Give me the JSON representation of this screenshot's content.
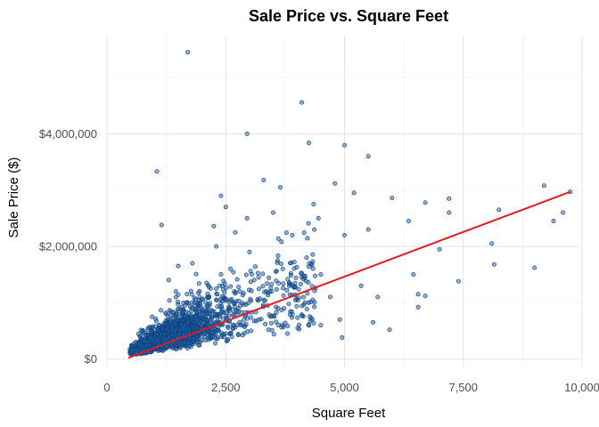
{
  "chart_data": {
    "type": "scatter",
    "title": "Sale Price vs. Square Feet",
    "xlabel": "Square Feet",
    "ylabel": "Sale Price ($)",
    "xlim": [
      0,
      10000
    ],
    "ylim": [
      0,
      5500000
    ],
    "x_ticks": [
      0,
      2500,
      5000,
      7500,
      10000
    ],
    "x_tick_labels": [
      "0",
      "2,500",
      "5,000",
      "7,500",
      "10,000"
    ],
    "y_ticks": [
      0,
      2000000,
      4000000
    ],
    "y_tick_labels": [
      "$0",
      "$2,000,000",
      "$4,000,000"
    ],
    "grid": true,
    "point_color": "#1f5fa8",
    "point_edge_color": "#0b3f7a",
    "trend_color": "#e41a1c",
    "trend_line": {
      "x": [
        450,
        9750
      ],
      "y": [
        20000,
        2970000
      ]
    },
    "series": [
      {
        "values": [
          [
            1700,
            5450000
          ],
          [
            4100,
            4560000
          ],
          [
            2950,
            4000000
          ],
          [
            4250,
            3840000
          ],
          [
            5000,
            3800000
          ],
          [
            1050,
            3330000
          ],
          [
            5500,
            3600000
          ],
          [
            2400,
            2900000
          ],
          [
            3300,
            3180000
          ],
          [
            4800,
            3120000
          ],
          [
            3650,
            3050000
          ],
          [
            5200,
            2950000
          ],
          [
            6000,
            2860000
          ],
          [
            6700,
            2780000
          ],
          [
            7200,
            2850000
          ],
          [
            9200,
            3080000
          ],
          [
            9750,
            2970000
          ],
          [
            2500,
            2700000
          ],
          [
            2950,
            2500000
          ],
          [
            3500,
            2600000
          ],
          [
            4350,
            2750000
          ],
          [
            4450,
            2500000
          ],
          [
            5500,
            2300000
          ],
          [
            6350,
            2450000
          ],
          [
            7200,
            2600000
          ],
          [
            8250,
            2650000
          ],
          [
            9600,
            2600000
          ],
          [
            9400,
            2450000
          ],
          [
            1150,
            2380000
          ],
          [
            2250,
            2360000
          ],
          [
            3900,
            2200000
          ],
          [
            5000,
            2200000
          ],
          [
            7000,
            1950000
          ],
          [
            8100,
            2050000
          ],
          [
            8150,
            1680000
          ],
          [
            9000,
            1620000
          ],
          [
            7400,
            1380000
          ],
          [
            6700,
            1120000
          ],
          [
            6550,
            920000
          ],
          [
            6550,
            1150000
          ],
          [
            6450,
            1500000
          ],
          [
            5950,
            520000
          ],
          [
            5600,
            650000
          ],
          [
            4950,
            380000
          ],
          [
            4500,
            600000
          ],
          [
            4900,
            700000
          ],
          [
            5350,
            1300000
          ],
          [
            5700,
            1100000
          ],
          [
            4250,
            1000000
          ],
          [
            3600,
            900000
          ],
          [
            3200,
            700000
          ],
          [
            3400,
            520000
          ],
          [
            3800,
            450000
          ],
          [
            4200,
            1800000
          ],
          [
            4500,
            1500000
          ],
          [
            3000,
            1900000
          ],
          [
            2700,
            2250000
          ],
          [
            2300,
            2000000
          ],
          [
            1800,
            1700000
          ],
          [
            1500,
            1650000
          ],
          [
            1300,
            1400000
          ],
          [
            2600,
            1600000
          ],
          [
            3100,
            1400000
          ],
          [
            3700,
            1600000
          ],
          [
            4100,
            1450000
          ],
          [
            4700,
            1100000
          ],
          [
            2800,
            1200000
          ],
          [
            2100,
            1350000
          ],
          [
            1950,
            1100000
          ],
          [
            1650,
            950000
          ],
          [
            1250,
            800000
          ],
          [
            950,
            750000
          ],
          [
            750,
            500000
          ],
          [
            1450,
            1200000
          ],
          [
            2300,
            1050000
          ],
          [
            3350,
            1200000
          ]
        ]
      }
    ]
  }
}
